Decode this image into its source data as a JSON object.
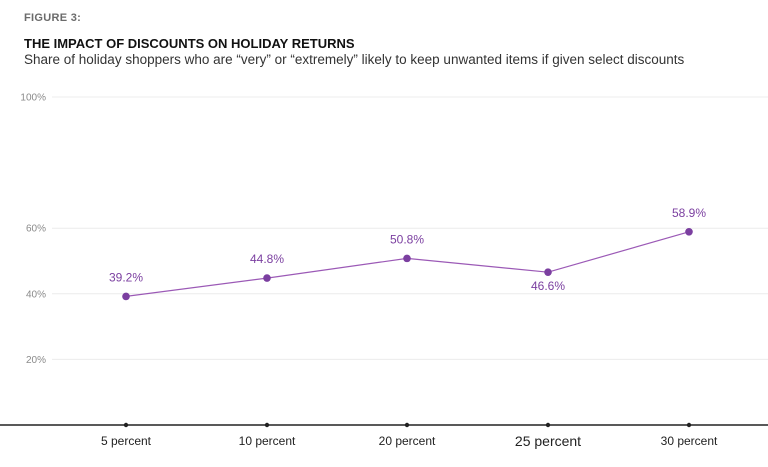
{
  "figure_label": "FIGURE 3:",
  "chart_data": {
    "type": "line",
    "title": "THE IMPACT OF DISCOUNTS ON HOLIDAY RETURNS",
    "subtitle": "Share of holiday shoppers who are “very” or “extremely” likely to keep unwanted items if given select discounts",
    "categories": [
      "5 percent",
      "10 percent",
      "20 percent",
      "25 percent",
      "30 percent"
    ],
    "values": [
      39.2,
      44.8,
      50.8,
      46.6,
      58.9
    ],
    "data_labels": [
      "39.2%",
      "44.8%",
      "50.8%",
      "46.6%",
      "58.9%"
    ],
    "y_ticks": [
      "100%",
      "60%",
      "40%",
      "20%"
    ],
    "y_tick_values": [
      100,
      60,
      40,
      20
    ],
    "ylim": [
      0,
      100
    ],
    "grid": true,
    "line_color": "#9b59b6",
    "point_color": "#7b3fa0",
    "label_color": "#7b3fa0"
  }
}
